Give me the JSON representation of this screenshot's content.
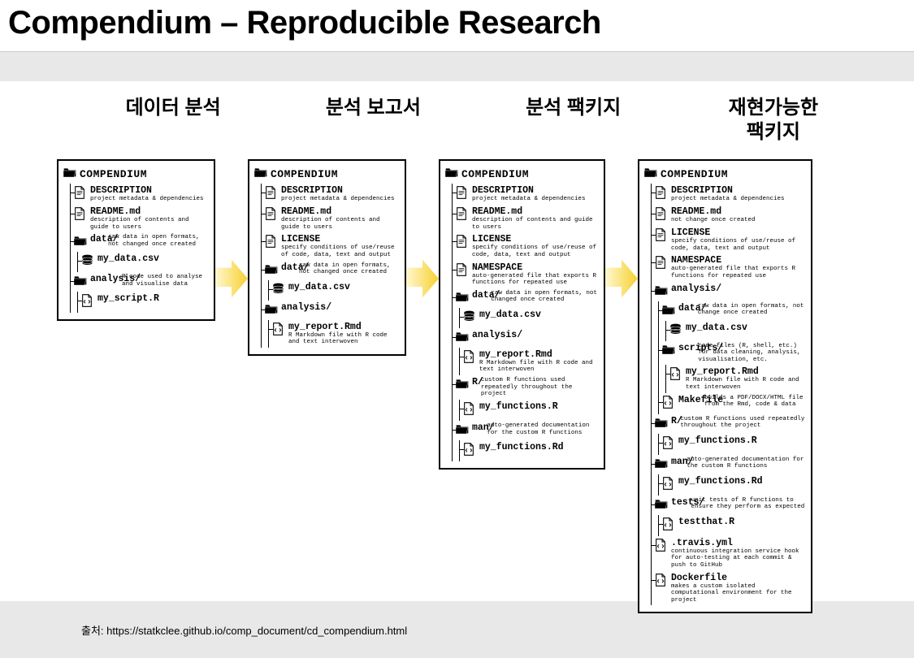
{
  "title": "Compendium – Reproducible Research",
  "source_label": "출처: ",
  "source_url": "https://statkclee.github.io/comp_document/cd_compendium.html",
  "arrow_color": "#f6d030",
  "columns": [
    {
      "heading": "데이터 분석"
    },
    {
      "heading": "분석 보고서"
    },
    {
      "heading": "분석 팩키지"
    },
    {
      "heading": "재현가능한\n팩키지"
    }
  ],
  "root_label": "COMPENDIUM",
  "boxes": [
    {
      "items": [
        {
          "icon": "file",
          "name": "DESCRIPTION",
          "desc": "project metadata & dependencies"
        },
        {
          "icon": "file",
          "name": "README.md",
          "desc": "description of contents and guide to users"
        },
        {
          "icon": "folder",
          "name": "data/",
          "side": "raw data in open formats, not changed once created",
          "children": [
            {
              "icon": "db",
              "name": "my_data.csv"
            }
          ]
        },
        {
          "icon": "folder",
          "name": "analysis/",
          "side": "R code used to analyse and visualise data",
          "children": [
            {
              "icon": "code",
              "name": "my_script.R"
            }
          ]
        }
      ]
    },
    {
      "items": [
        {
          "icon": "file",
          "name": "DESCRIPTION",
          "desc": "project metadata & dependencies"
        },
        {
          "icon": "file",
          "name": "README.md",
          "desc": "description of contents and guide to users"
        },
        {
          "icon": "file",
          "name": "LICENSE",
          "desc": "specify conditions of use/reuse of code, data, text and output"
        },
        {
          "icon": "folder",
          "name": "data/",
          "side": "raw data in open formats, not changed once created",
          "children": [
            {
              "icon": "db",
              "name": "my_data.csv"
            }
          ]
        },
        {
          "icon": "folder",
          "name": "analysis/",
          "children": [
            {
              "icon": "code",
              "name": "my_report.Rmd",
              "desc": "R Markdown file with R code and text interwoven"
            }
          ]
        }
      ]
    },
    {
      "items": [
        {
          "icon": "file",
          "name": "DESCRIPTION",
          "desc": "project metadata & dependencies"
        },
        {
          "icon": "file",
          "name": "README.md",
          "desc": "description of contents and guide to users"
        },
        {
          "icon": "file",
          "name": "LICENSE",
          "desc": "specify conditions of use/reuse of code, data, text and output"
        },
        {
          "icon": "file",
          "name": "NAMESPACE",
          "desc": "auto-generated file that exports R functions for repeated use"
        },
        {
          "icon": "folder",
          "name": "data/",
          "side": "raw data in open formats, not changed once created",
          "children": [
            {
              "icon": "db",
              "name": "my_data.csv"
            }
          ]
        },
        {
          "icon": "folder",
          "name": "analysis/",
          "children": [
            {
              "icon": "code",
              "name": "my_report.Rmd",
              "desc": "R Markdown file with R code and text interwoven"
            }
          ]
        },
        {
          "icon": "folder",
          "name": "R/",
          "side": "custom R functions used repeatedly throughout the project",
          "children": [
            {
              "icon": "code",
              "name": "my_functions.R"
            }
          ]
        },
        {
          "icon": "folder",
          "name": "man/",
          "side": "auto-generated documentation for the custom R functions",
          "children": [
            {
              "icon": "code",
              "name": "my_functions.Rd"
            }
          ]
        }
      ]
    },
    {
      "items": [
        {
          "icon": "file",
          "name": "DESCRIPTION",
          "desc": "project metadata & dependencies"
        },
        {
          "icon": "file",
          "name": "README.md",
          "desc": "not change once created"
        },
        {
          "icon": "file",
          "name": "LICENSE",
          "desc": "specify conditions of use/reuse of code, data, text and output"
        },
        {
          "icon": "file",
          "name": "NAMESPACE",
          "desc": "auto-generated file that exports R functions for repeated use"
        },
        {
          "icon": "folder",
          "name": "analysis/",
          "children": [
            {
              "icon": "folder",
              "name": "data/",
              "side": "raw data in open formats, not change once created",
              "children": [
                {
                  "icon": "db",
                  "name": "my_data.csv"
                }
              ]
            },
            {
              "icon": "folder",
              "name": "scripts/",
              "side": "code files (R, shell, etc.) for data cleaning, analysis, visualisation, etc.",
              "children": [
                {
                  "icon": "code",
                  "name": "my_report.Rmd",
                  "desc": "R Markdown file with R code and text interwoven"
                }
              ]
            },
            {
              "icon": "code",
              "name": "Makefile",
              "side": "builds a PDF/DOCX/HTML file from the Rmd, code & data"
            }
          ]
        },
        {
          "icon": "folder",
          "name": "R/",
          "side": "custom R functions used repeatedly throughout the project",
          "children": [
            {
              "icon": "code",
              "name": "my_functions.R"
            }
          ]
        },
        {
          "icon": "folder",
          "name": "man/",
          "side": "auto-generated documentation for the custom R functions",
          "children": [
            {
              "icon": "code",
              "name": "my_functions.Rd"
            }
          ]
        },
        {
          "icon": "folder",
          "name": "tests/",
          "side": "unit tests of R functions to ensure they perform as expected",
          "children": [
            {
              "icon": "code",
              "name": "testthat.R"
            }
          ]
        },
        {
          "icon": "code",
          "name": ".travis.yml",
          "desc": "continuous integration service hook for auto-testing at each commit & push to GitHub"
        },
        {
          "icon": "code",
          "name": "Dockerfile",
          "desc": "makes a custom isolated computational environment for the project"
        }
      ]
    }
  ]
}
